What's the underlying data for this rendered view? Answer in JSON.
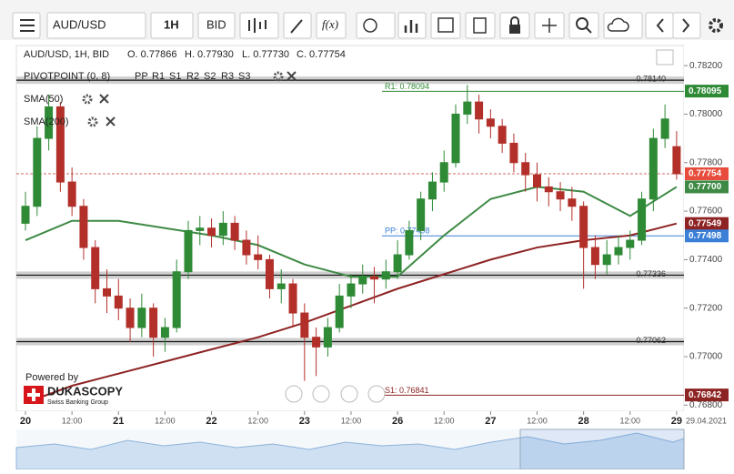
{
  "toolbar": {
    "symbol": "AUD/USD",
    "period": "1H",
    "side": "BID",
    "function": "f(x)"
  },
  "chart_data": {
    "type": "candlestick",
    "title": "AUD/USD, 1H, BID",
    "ohlc_header": [
      "O. 0.77866",
      "H. 0.77930",
      "L. 0.77730",
      "C. 0.77754"
    ],
    "colors": {
      "up": "#2f8a36",
      "down": "#b3302a"
    },
    "x": [
      0,
      3,
      6,
      9,
      12,
      15,
      18,
      21,
      24,
      27,
      30,
      33,
      36,
      39,
      42,
      45,
      48,
      51,
      54,
      57,
      60,
      63,
      66,
      69,
      72,
      75,
      78,
      81,
      84,
      87,
      90,
      93,
      96,
      99,
      102,
      105,
      108,
      111,
      114,
      117,
      120,
      123,
      126,
      129,
      132,
      135,
      138,
      141,
      144,
      147,
      150,
      153,
      156,
      159,
      162,
      165,
      168
    ],
    "candles": [
      [
        0.7755,
        0.7768,
        0.7752,
        0.7762
      ],
      [
        0.7762,
        0.7795,
        0.7758,
        0.779
      ],
      [
        0.779,
        0.7808,
        0.7785,
        0.7803
      ],
      [
        0.7803,
        0.7805,
        0.7768,
        0.7772
      ],
      [
        0.7772,
        0.7778,
        0.7758,
        0.7762
      ],
      [
        0.7762,
        0.7765,
        0.774,
        0.7745
      ],
      [
        0.7745,
        0.7748,
        0.7722,
        0.7728
      ],
      [
        0.7728,
        0.7736,
        0.7718,
        0.7725
      ],
      [
        0.7725,
        0.7732,
        0.7715,
        0.772
      ],
      [
        0.772,
        0.7724,
        0.7706,
        0.7712
      ],
      [
        0.7712,
        0.7726,
        0.7708,
        0.772
      ],
      [
        0.772,
        0.7722,
        0.77,
        0.7708
      ],
      [
        0.7708,
        0.7716,
        0.7702,
        0.7712
      ],
      [
        0.7712,
        0.774,
        0.771,
        0.7735
      ],
      [
        0.7735,
        0.7756,
        0.7732,
        0.7752
      ],
      [
        0.7752,
        0.7758,
        0.7746,
        0.7753
      ],
      [
        0.7753,
        0.7757,
        0.7745,
        0.775
      ],
      [
        0.775,
        0.776,
        0.7746,
        0.7755
      ],
      [
        0.7755,
        0.7758,
        0.7744,
        0.7748
      ],
      [
        0.7748,
        0.7752,
        0.7738,
        0.7742
      ],
      [
        0.7742,
        0.775,
        0.7736,
        0.774
      ],
      [
        0.774,
        0.7742,
        0.7724,
        0.7728
      ],
      [
        0.7728,
        0.7736,
        0.7722,
        0.773
      ],
      [
        0.773,
        0.7732,
        0.7712,
        0.7718
      ],
      [
        0.7718,
        0.7722,
        0.769,
        0.7708
      ],
      [
        0.7708,
        0.7712,
        0.7692,
        0.7704
      ],
      [
        0.7704,
        0.7716,
        0.77,
        0.7712
      ],
      [
        0.7712,
        0.773,
        0.771,
        0.7725
      ],
      [
        0.7725,
        0.7734,
        0.772,
        0.773
      ],
      [
        0.773,
        0.7738,
        0.7726,
        0.7733
      ],
      [
        0.7733,
        0.7737,
        0.7722,
        0.7732
      ],
      [
        0.7732,
        0.774,
        0.7728,
        0.7735
      ],
      [
        0.7735,
        0.7748,
        0.7732,
        0.7742
      ],
      [
        0.7742,
        0.7756,
        0.774,
        0.7752
      ],
      [
        0.7752,
        0.7768,
        0.7748,
        0.7765
      ],
      [
        0.7765,
        0.7776,
        0.776,
        0.7772
      ],
      [
        0.7772,
        0.7785,
        0.7768,
        0.778
      ],
      [
        0.778,
        0.7804,
        0.7778,
        0.78
      ],
      [
        0.78,
        0.7812,
        0.7796,
        0.7805
      ],
      [
        0.7805,
        0.7808,
        0.7792,
        0.7798
      ],
      [
        0.7798,
        0.7802,
        0.779,
        0.7795
      ],
      [
        0.7795,
        0.7798,
        0.7784,
        0.7788
      ],
      [
        0.7788,
        0.7792,
        0.7776,
        0.778
      ],
      [
        0.778,
        0.7784,
        0.7768,
        0.7775
      ],
      [
        0.7775,
        0.778,
        0.7764,
        0.777
      ],
      [
        0.777,
        0.7774,
        0.7762,
        0.7768
      ],
      [
        0.7768,
        0.7772,
        0.776,
        0.7765
      ],
      [
        0.7765,
        0.777,
        0.7756,
        0.7762
      ],
      [
        0.7762,
        0.7764,
        0.7728,
        0.7745
      ],
      [
        0.7745,
        0.775,
        0.7732,
        0.7738
      ],
      [
        0.7738,
        0.7748,
        0.7734,
        0.7742
      ],
      [
        0.7742,
        0.775,
        0.7738,
        0.7745
      ],
      [
        0.7745,
        0.7752,
        0.774,
        0.7748
      ],
      [
        0.7748,
        0.7768,
        0.7746,
        0.7765
      ],
      [
        0.7765,
        0.7794,
        0.776,
        0.779
      ],
      [
        0.779,
        0.7804,
        0.7786,
        0.7798
      ],
      [
        0.77866,
        0.7793,
        0.7773,
        0.77754
      ]
    ],
    "indicators": [
      {
        "name": "SMA(50)",
        "color": "#3e8a45",
        "x": [
          0,
          12,
          24,
          36,
          48,
          60,
          72,
          84,
          96,
          108,
          120,
          132,
          144,
          156,
          168
        ],
        "values": [
          0.7748,
          0.7756,
          0.7756,
          0.7753,
          0.775,
          0.7746,
          0.7738,
          0.7733,
          0.7733,
          0.775,
          0.7765,
          0.777,
          0.7768,
          0.7758,
          0.777
        ]
      },
      {
        "name": "SMA(200)",
        "color": "#8e2323",
        "x": [
          0,
          12,
          24,
          36,
          48,
          60,
          72,
          84,
          96,
          108,
          120,
          132,
          144,
          156,
          168
        ],
        "values": [
          0.7681,
          0.7688,
          0.7693,
          0.7698,
          0.7703,
          0.7708,
          0.7714,
          0.7721,
          0.7728,
          0.7734,
          0.774,
          0.7745,
          0.7748,
          0.775,
          0.77549
        ]
      }
    ],
    "pivot_indicator": "PIVOTPOINT (0, 8)",
    "pivot_keys": [
      {
        "name": "PP",
        "color": "#3b7fd6"
      },
      {
        "name": "R1",
        "color": "#2f8a36"
      },
      {
        "name": "S1",
        "color": "#c0392b"
      },
      {
        "name": "R2",
        "color": "#e0452f"
      },
      {
        "name": "S2",
        "color": "#e8891c"
      },
      {
        "name": "R3",
        "color": "#e8c51c"
      },
      {
        "name": "S3",
        "color": "#d6d61a"
      }
    ],
    "pivot_levels": [
      {
        "value": 0.78094,
        "label": "R1: 0.78094",
        "color": "#2f8a36"
      },
      {
        "value": 0.77498,
        "label": "PP: 0.77498",
        "color": "#3b7fd6"
      },
      {
        "value": 0.76841,
        "label": "S1: 0.76841",
        "color": "#8e2323"
      }
    ],
    "drawn_lines": [
      {
        "value": 0.7814,
        "label": "0.78140"
      },
      {
        "value": 0.77336,
        "label": "0.77336"
      },
      {
        "value": 0.77062,
        "label": "0.77062"
      }
    ],
    "last_price": {
      "value": 0.77754,
      "color": "#c0392b"
    },
    "price_tags": [
      {
        "value": 0.78095,
        "label": "0.78095",
        "color": "#2f8a36"
      },
      {
        "value": 0.77754,
        "label": "0.77754",
        "color": "#e74c3c"
      },
      {
        "value": 0.777,
        "label": "0.77700",
        "color": "#3e8a45"
      },
      {
        "value": 0.77549,
        "label": "0.77549",
        "color": "#8e2323"
      },
      {
        "value": 0.77498,
        "label": "0.77498",
        "color": "#3b7fd6"
      },
      {
        "value": 0.76842,
        "label": "0.76842",
        "color": "#8e2323"
      }
    ],
    "xlim": [
      -2.35,
      169.9
    ],
    "xticks": [
      {
        "value": 0,
        "label": "20"
      },
      {
        "value": 12,
        "label": "12:00"
      },
      {
        "value": 24,
        "label": "21"
      },
      {
        "value": 36,
        "label": "12:00"
      },
      {
        "value": 48,
        "label": "22"
      },
      {
        "value": 60,
        "label": "12:00"
      },
      {
        "value": 72,
        "label": "23"
      },
      {
        "value": 84,
        "label": "12:00"
      },
      {
        "value": 96,
        "label": "26"
      },
      {
        "value": 108,
        "label": "12:00"
      },
      {
        "value": 120,
        "label": "27"
      },
      {
        "value": 132,
        "label": "12:00"
      },
      {
        "value": 144,
        "label": "28"
      },
      {
        "value": 156,
        "label": "12:00"
      },
      {
        "value": 168,
        "label": "29"
      }
    ],
    "date_label": "29.04.2021",
    "ylim": [
      0.76775,
      0.78283
    ],
    "yticks": [
      {
        "value": 0.782,
        "label": "0.78200"
      },
      {
        "value": 0.78,
        "label": "0.78000"
      },
      {
        "value": 0.778,
        "label": "0.77800"
      },
      {
        "value": 0.776,
        "label": "0.77600"
      },
      {
        "value": 0.774,
        "label": "0.77400"
      },
      {
        "value": 0.772,
        "label": "0.77200"
      },
      {
        "value": 0.77,
        "label": "0.77000"
      },
      {
        "value": 0.768,
        "label": "0.76800"
      }
    ],
    "grid": false
  },
  "branding": {
    "powered": "Powered by",
    "name": "DUKASCOPY",
    "tagline": "Swiss Banking Group"
  }
}
